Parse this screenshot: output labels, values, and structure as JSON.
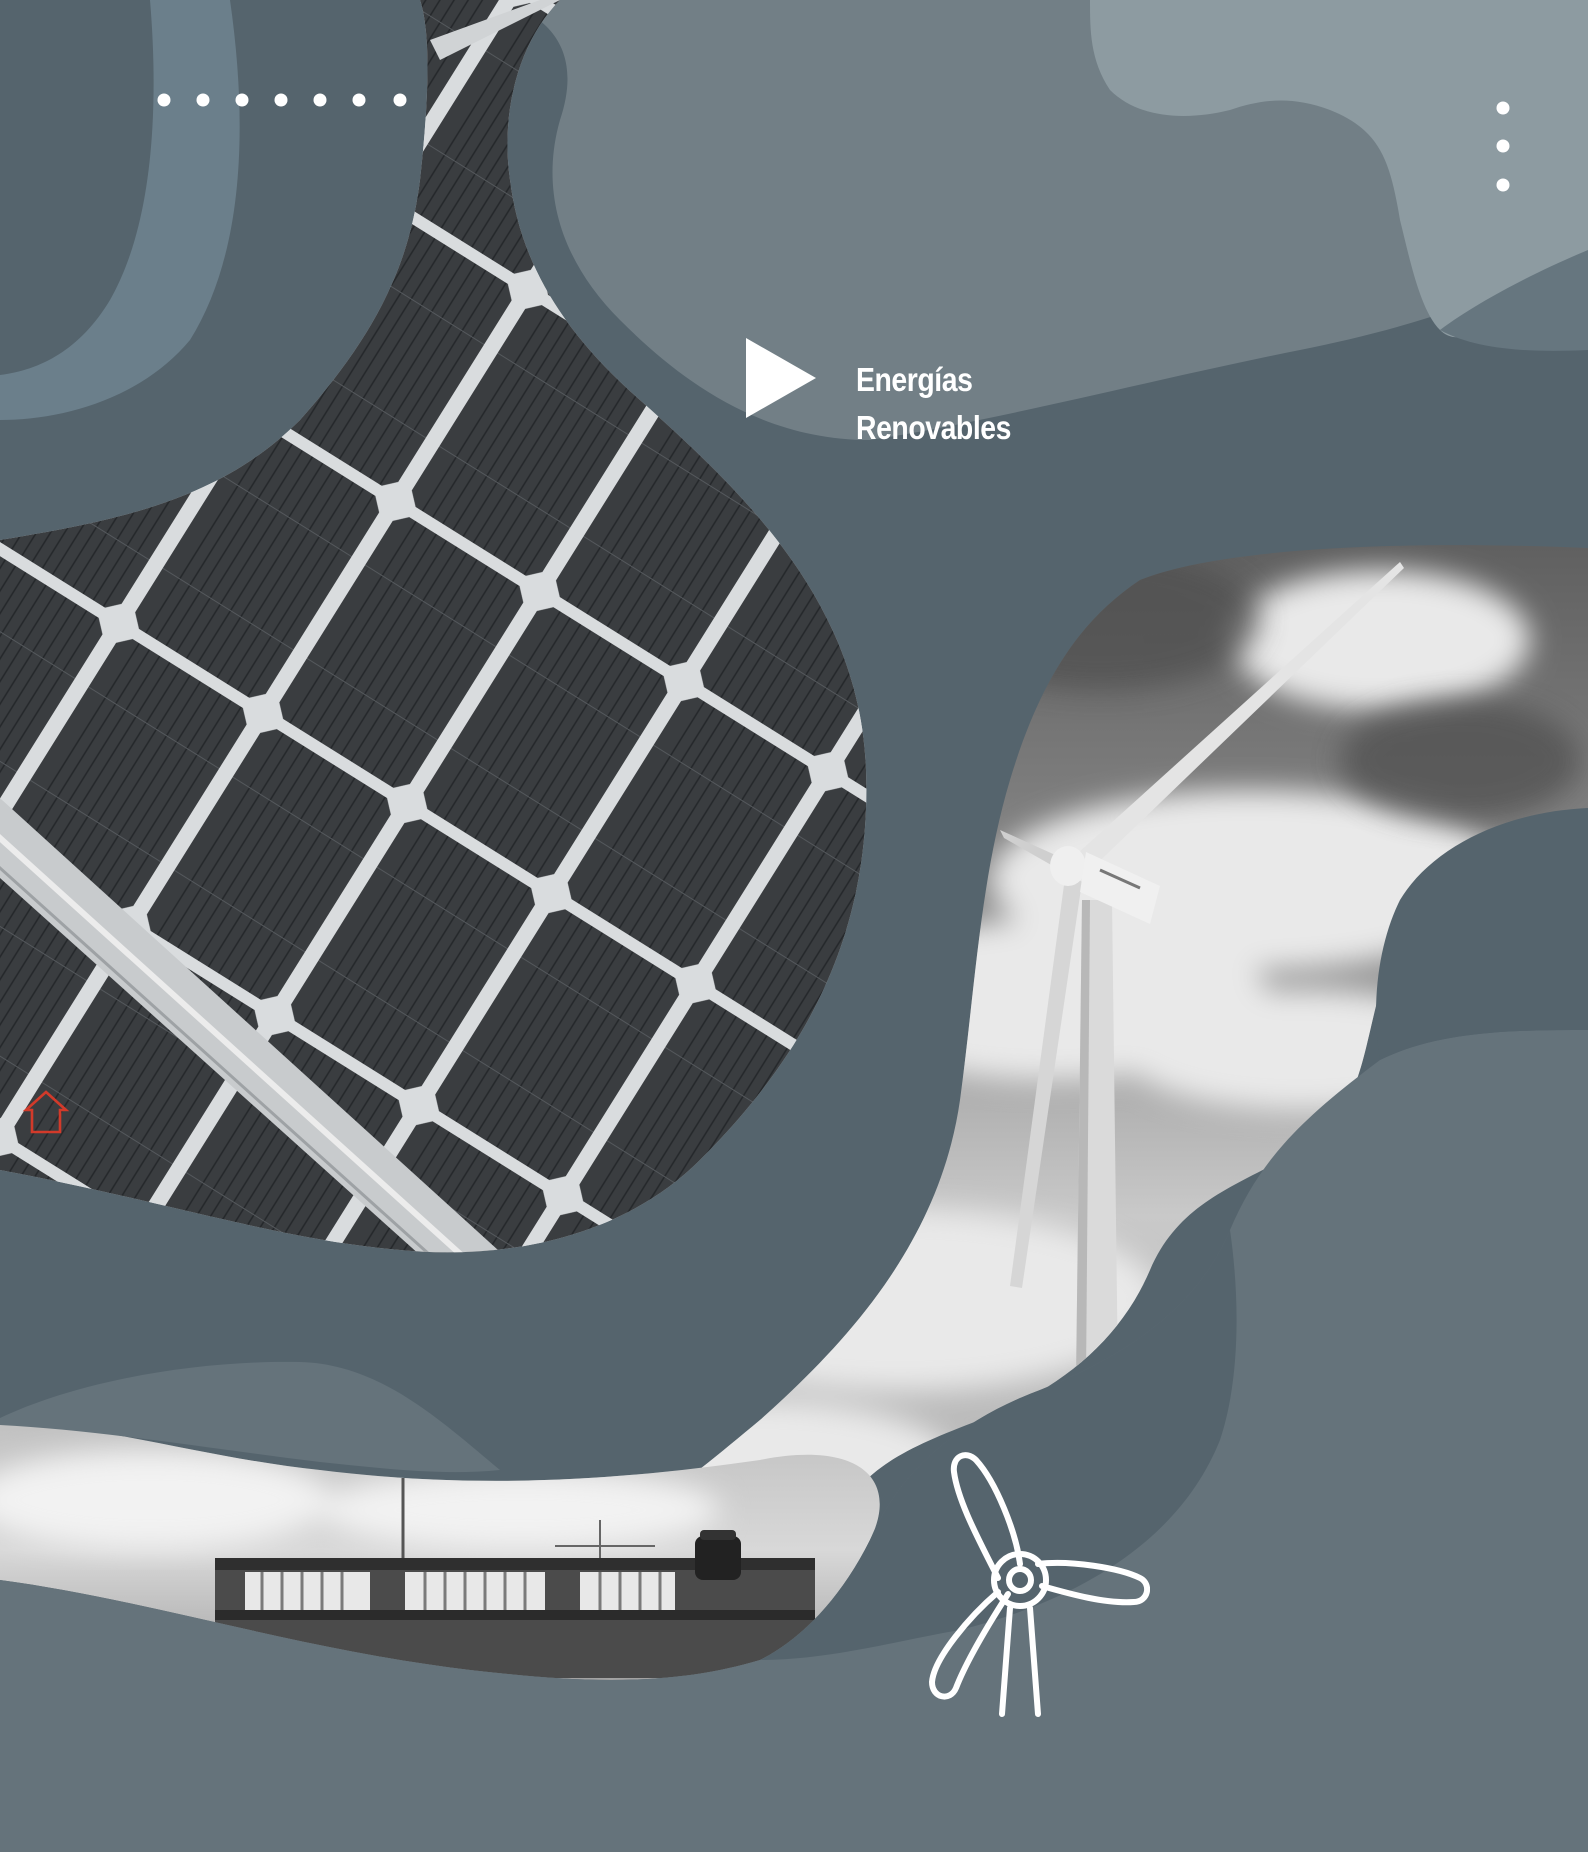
{
  "title": {
    "line1": "Energías",
    "line2": "Renovables"
  },
  "images": {
    "solar_panel": "solar-panel-photo",
    "wind_turbine": "wind-turbine-photo",
    "rooftop": "rooftop-building-photo"
  },
  "icons": {
    "home": "home-icon",
    "play": "play-icon",
    "menu": "vertical-dots-menu-icon",
    "dots": "horizontal-dots-decoration",
    "turbine": "wind-turbine-icon"
  },
  "colors": {
    "background": "#55646d",
    "panel_light": "#727f86",
    "panel_lighter": "#8d9ba1",
    "panel_mid": "#65737b",
    "panel_slate": "#6b7f8b",
    "home_icon": "#d23a2a",
    "foreground": "#ffffff"
  }
}
